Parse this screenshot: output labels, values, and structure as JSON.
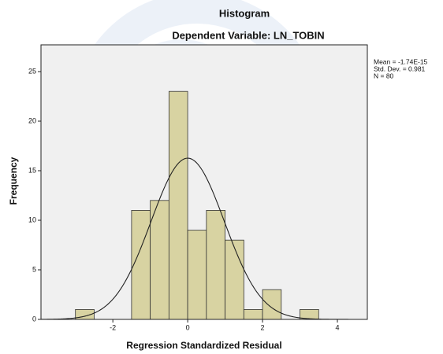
{
  "chart_data": {
    "type": "histogram",
    "title": "Histogram",
    "subtitle": "Dependent Variable: LN_TOBIN",
    "x_label": "Regression Standardized Residual",
    "y_label": "Frequency",
    "bins": [
      -3,
      -2.5,
      -2,
      -1.5,
      -1,
      -0.5,
      0,
      0.5,
      1,
      1.5,
      2,
      2.5,
      3,
      3.5
    ],
    "values": [
      1,
      0,
      0,
      11,
      12,
      23,
      9,
      11,
      8,
      1,
      3,
      0,
      1
    ],
    "color": "#d8d3a2",
    "xlim": [
      -3.92,
      4.8
    ],
    "xticks": [
      -2,
      0,
      2,
      4
    ],
    "ylim": [
      0,
      27.7
    ],
    "yticks": [
      0,
      5,
      10,
      15,
      20,
      25
    ],
    "stats": [
      {
        "value": -1.74e-15,
        "label": "Mean = -1.74E-15"
      },
      {
        "value": 0.981,
        "label": "Std. Dev. = 0.981"
      },
      {
        "value": 80,
        "label": "N = 80"
      }
    ]
  }
}
